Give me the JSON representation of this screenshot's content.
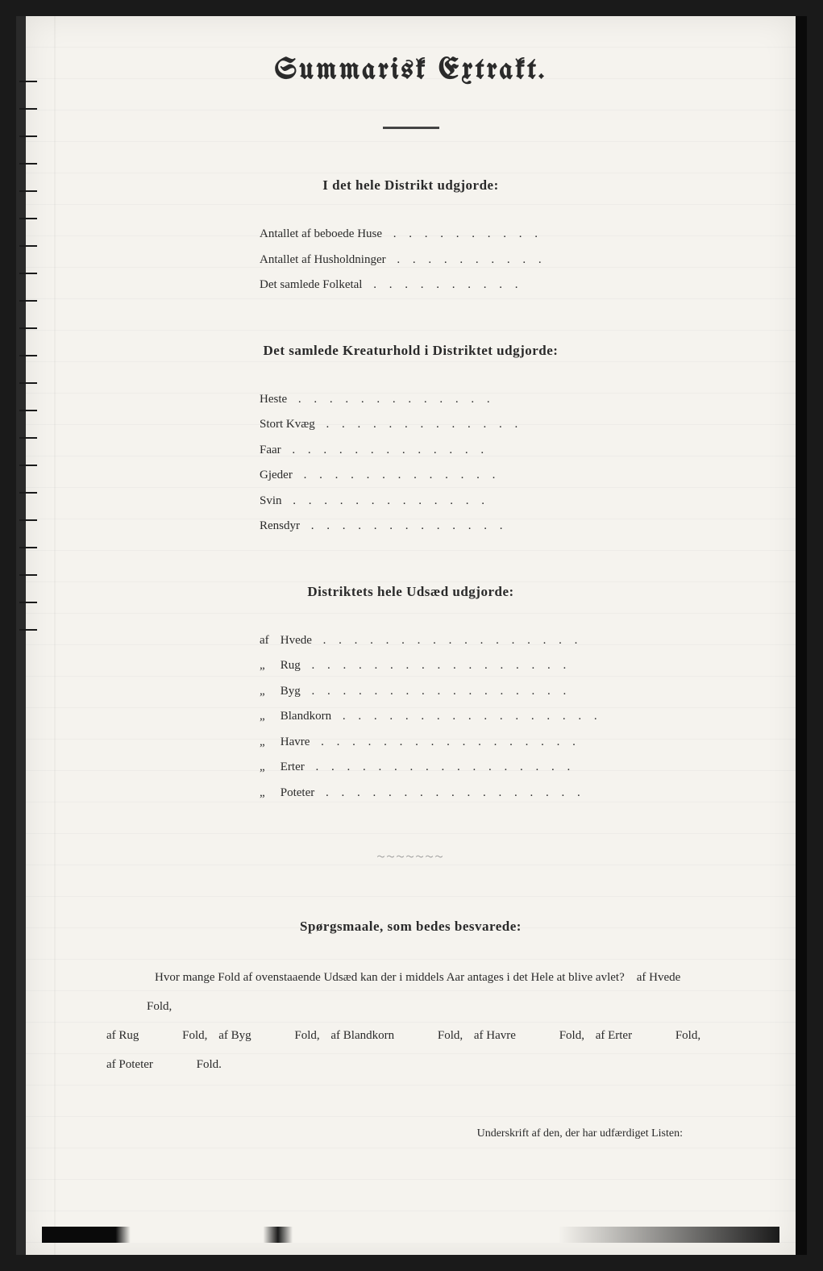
{
  "title": "Summarisk Extrakt.",
  "section1": {
    "heading": "I det hele Distrikt udgjorde:",
    "items": [
      {
        "label": "Antallet af beboede Huse"
      },
      {
        "label": "Antallet af Husholdninger"
      },
      {
        "label": "Det samlede Folketal"
      }
    ]
  },
  "section2": {
    "heading": "Det samlede Kreaturhold i Distriktet udgjorde:",
    "items": [
      {
        "label": "Heste"
      },
      {
        "label": "Stort Kvæg"
      },
      {
        "label": "Faar"
      },
      {
        "label": "Gjeder"
      },
      {
        "label": "Svin"
      },
      {
        "label": "Rensdyr"
      }
    ]
  },
  "section3": {
    "heading": "Distriktets hele Udsæd udgjorde:",
    "prefix": "af",
    "items": [
      {
        "label": "Hvede"
      },
      {
        "label": "Rug"
      },
      {
        "label": "Byg"
      },
      {
        "label": "Blandkorn"
      },
      {
        "label": "Havre"
      },
      {
        "label": "Erter"
      },
      {
        "label": "Poteter"
      }
    ]
  },
  "section4": {
    "heading": "Spørgsmaale, som bedes besvarede:",
    "question_intro": "Hvor mange Fold af ovenstaaende Udsæd kan der i middels Aar antages i det Hele at blive avlet?",
    "fold_items": [
      {
        "prefix": "af",
        "label": "Hvede",
        "suffix": "Fold,"
      },
      {
        "prefix": "af",
        "label": "Rug",
        "suffix": "Fold,"
      },
      {
        "prefix": "af",
        "label": "Byg",
        "suffix": "Fold,"
      },
      {
        "prefix": "af",
        "label": "Blandkorn",
        "suffix": "Fold,"
      },
      {
        "prefix": "af",
        "label": "Havre",
        "suffix": "Fold,"
      },
      {
        "prefix": "af",
        "label": "Erter",
        "suffix": "Fold,"
      },
      {
        "prefix": "af",
        "label": "Poteter",
        "suffix": "Fold."
      }
    ]
  },
  "signature": "Underskrift af den, der har udfærdiget Listen:",
  "dots_long": ".  .  .  .  .  .  .  .  .  .",
  "dots_medium": ".  .  .  .  .  .  .  .  .  .  .  .  .",
  "dots_xlong": ".  .  .  .  .  .  .  .  .  .  .  .  .  .  .  .  .",
  "ditto": "„"
}
